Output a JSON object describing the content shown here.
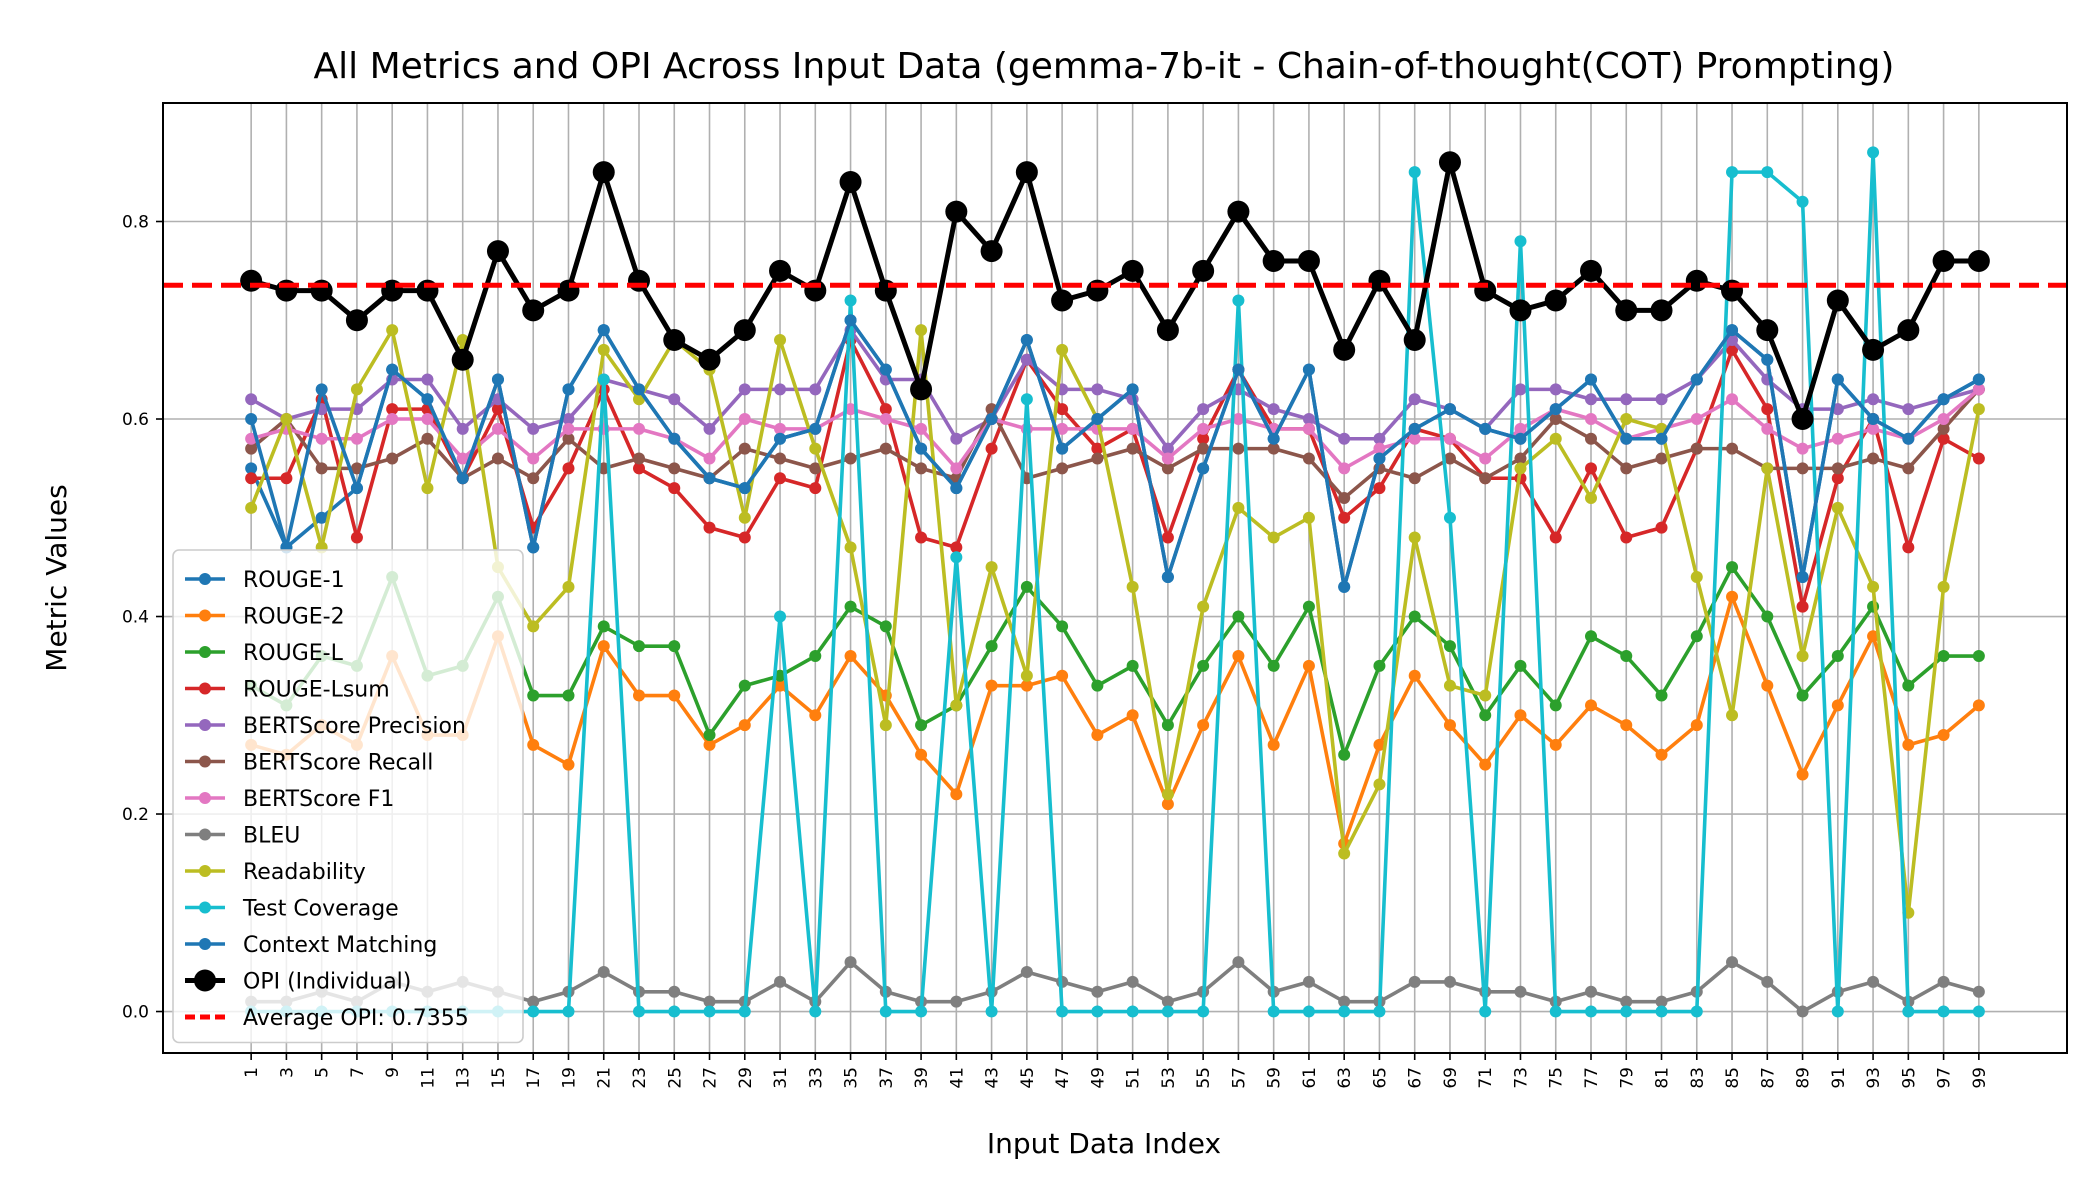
{
  "chart_data": {
    "type": "line",
    "title": "All Metrics and OPI Across Input Data (gemma-7b-it - Chain-of-thought(COT) Prompting)",
    "xlabel": "Input Data Index",
    "ylabel": "Metric Values",
    "xlim": [
      -4,
      104
    ],
    "ylim": [
      -0.042,
      0.92
    ],
    "x": [
      1,
      3,
      5,
      7,
      9,
      11,
      13,
      15,
      17,
      19,
      21,
      23,
      25,
      27,
      29,
      31,
      33,
      35,
      37,
      39,
      41,
      43,
      45,
      47,
      49,
      51,
      53,
      55,
      57,
      59,
      61,
      63,
      65,
      67,
      69,
      71,
      73,
      75,
      77,
      79,
      81,
      83,
      85,
      87,
      89,
      91,
      93,
      95,
      97,
      99
    ],
    "x_tick_labels": [
      "1",
      "3",
      "5",
      "7",
      "9",
      "11",
      "13",
      "15",
      "17",
      "19",
      "21",
      "23",
      "25",
      "27",
      "29",
      "31",
      "33",
      "35",
      "37",
      "39",
      "41",
      "43",
      "45",
      "47",
      "49",
      "51",
      "53",
      "55",
      "57",
      "59",
      "61",
      "63",
      "65",
      "67",
      "69",
      "71",
      "73",
      "75",
      "77",
      "79",
      "81",
      "83",
      "85",
      "87",
      "89",
      "91",
      "93",
      "95",
      "97",
      "99"
    ],
    "y_ticks": [
      0.0,
      0.2,
      0.4,
      0.6,
      0.8
    ],
    "y_tick_labels": [
      "0.0",
      "0.2",
      "0.4",
      "0.6",
      "0.8"
    ],
    "grid": true,
    "legend_position": "lower-left",
    "series": [
      {
        "name": "ROUGE-1",
        "color": "#1f77b4",
        "values": [
          0.55,
          0.47,
          0.5,
          0.53,
          0.65,
          0.62,
          0.54,
          0.64,
          0.47,
          0.63,
          0.69,
          0.63,
          0.58,
          0.54,
          0.53,
          0.58,
          0.59,
          0.7,
          0.65,
          0.57,
          0.53,
          0.6,
          0.68,
          0.57,
          0.6,
          0.63,
          0.44,
          0.55,
          0.65,
          0.58,
          0.65,
          0.43,
          0.56,
          0.59,
          0.61,
          0.59,
          0.58,
          0.61,
          0.64,
          0.58,
          0.58,
          0.64,
          0.69,
          0.66,
          0.44,
          0.64,
          0.6,
          0.58,
          0.62,
          0.64
        ]
      },
      {
        "name": "ROUGE-2",
        "color": "#ff7f0e",
        "values": [
          0.27,
          0.26,
          0.29,
          0.27,
          0.36,
          0.28,
          0.28,
          0.38,
          0.27,
          0.25,
          0.37,
          0.32,
          0.32,
          0.27,
          0.29,
          0.33,
          0.3,
          0.36,
          0.32,
          0.26,
          0.22,
          0.33,
          0.33,
          0.34,
          0.28,
          0.3,
          0.21,
          0.29,
          0.36,
          0.27,
          0.35,
          0.17,
          0.27,
          0.34,
          0.29,
          0.25,
          0.3,
          0.27,
          0.31,
          0.29,
          0.26,
          0.29,
          0.42,
          0.33,
          0.24,
          0.31,
          0.38,
          0.27,
          0.28,
          0.31
        ]
      },
      {
        "name": "ROUGE-L",
        "color": "#2ca02c",
        "values": [
          0.33,
          0.31,
          0.36,
          0.35,
          0.44,
          0.34,
          0.35,
          0.42,
          0.32,
          0.32,
          0.39,
          0.37,
          0.37,
          0.28,
          0.33,
          0.34,
          0.36,
          0.41,
          0.39,
          0.29,
          0.31,
          0.37,
          0.43,
          0.39,
          0.33,
          0.35,
          0.29,
          0.35,
          0.4,
          0.35,
          0.41,
          0.26,
          0.35,
          0.4,
          0.37,
          0.3,
          0.35,
          0.31,
          0.38,
          0.36,
          0.32,
          0.38,
          0.45,
          0.4,
          0.32,
          0.36,
          0.41,
          0.33,
          0.36,
          0.36
        ]
      },
      {
        "name": "ROUGE-Lsum",
        "color": "#d62728",
        "values": [
          0.54,
          0.54,
          0.62,
          0.48,
          0.61,
          0.61,
          0.54,
          0.61,
          0.49,
          0.55,
          0.63,
          0.55,
          0.53,
          0.49,
          0.48,
          0.54,
          0.53,
          0.68,
          0.61,
          0.48,
          0.47,
          0.57,
          0.66,
          0.61,
          0.57,
          0.59,
          0.48,
          0.58,
          0.65,
          0.59,
          0.59,
          0.5,
          0.53,
          0.59,
          0.58,
          0.54,
          0.54,
          0.48,
          0.55,
          0.48,
          0.49,
          0.57,
          0.67,
          0.61,
          0.41,
          0.54,
          0.6,
          0.47,
          0.58,
          0.56
        ]
      },
      {
        "name": "BERTScore Precision",
        "color": "#9467bd",
        "values": [
          0.62,
          0.6,
          0.61,
          0.61,
          0.64,
          0.64,
          0.59,
          0.62,
          0.59,
          0.6,
          0.64,
          0.63,
          0.62,
          0.59,
          0.63,
          0.63,
          0.63,
          0.69,
          0.64,
          0.64,
          0.58,
          0.6,
          0.66,
          0.63,
          0.63,
          0.62,
          0.57,
          0.61,
          0.63,
          0.61,
          0.6,
          0.58,
          0.58,
          0.62,
          0.61,
          0.59,
          0.63,
          0.63,
          0.62,
          0.62,
          0.62,
          0.64,
          0.68,
          0.64,
          0.61,
          0.61,
          0.62,
          0.61,
          0.62,
          0.63
        ]
      },
      {
        "name": "BERTScore Recall",
        "color": "#8c564b",
        "values": [
          0.57,
          0.6,
          0.55,
          0.55,
          0.56,
          0.58,
          0.54,
          0.56,
          0.54,
          0.58,
          0.55,
          0.56,
          0.55,
          0.54,
          0.57,
          0.56,
          0.55,
          0.56,
          0.57,
          0.55,
          0.54,
          0.61,
          0.54,
          0.55,
          0.56,
          0.57,
          0.55,
          0.57,
          0.57,
          0.57,
          0.56,
          0.52,
          0.55,
          0.54,
          0.56,
          0.54,
          0.56,
          0.6,
          0.58,
          0.55,
          0.56,
          0.57,
          0.57,
          0.55,
          0.55,
          0.55,
          0.56,
          0.55,
          0.59,
          0.63
        ]
      },
      {
        "name": "BERTScore F1",
        "color": "#e377c2",
        "values": [
          0.58,
          0.59,
          0.58,
          0.58,
          0.6,
          0.6,
          0.56,
          0.59,
          0.56,
          0.59,
          0.59,
          0.59,
          0.58,
          0.56,
          0.6,
          0.59,
          0.59,
          0.61,
          0.6,
          0.59,
          0.55,
          0.6,
          0.59,
          0.59,
          0.59,
          0.59,
          0.56,
          0.59,
          0.6,
          0.59,
          0.59,
          0.55,
          0.57,
          0.58,
          0.58,
          0.56,
          0.59,
          0.61,
          0.6,
          0.58,
          0.59,
          0.6,
          0.62,
          0.59,
          0.57,
          0.58,
          0.59,
          0.58,
          0.6,
          0.63
        ]
      },
      {
        "name": "BLEU",
        "color": "#7f7f7f",
        "values": [
          0.01,
          0.01,
          0.02,
          0.01,
          0.03,
          0.02,
          0.03,
          0.02,
          0.01,
          0.02,
          0.04,
          0.02,
          0.02,
          0.01,
          0.01,
          0.03,
          0.01,
          0.05,
          0.02,
          0.01,
          0.01,
          0.02,
          0.04,
          0.03,
          0.02,
          0.03,
          0.01,
          0.02,
          0.05,
          0.02,
          0.03,
          0.01,
          0.01,
          0.03,
          0.03,
          0.02,
          0.02,
          0.01,
          0.02,
          0.01,
          0.01,
          0.02,
          0.05,
          0.03,
          0.0,
          0.02,
          0.03,
          0.01,
          0.03,
          0.02
        ]
      },
      {
        "name": "Readability",
        "color": "#bcbd22",
        "values": [
          0.51,
          0.6,
          0.47,
          0.63,
          0.69,
          0.53,
          0.68,
          0.45,
          0.39,
          0.43,
          0.67,
          0.62,
          0.68,
          0.65,
          0.5,
          0.68,
          0.57,
          0.47,
          0.29,
          0.69,
          0.31,
          0.45,
          0.34,
          0.67,
          0.6,
          0.43,
          0.22,
          0.41,
          0.51,
          0.48,
          0.5,
          0.16,
          0.23,
          0.48,
          0.33,
          0.32,
          0.55,
          0.58,
          0.52,
          0.6,
          0.59,
          0.44,
          0.3,
          0.55,
          0.36,
          0.51,
          0.43,
          0.1,
          0.43,
          0.61
        ]
      },
      {
        "name": "Test Coverage",
        "color": "#17becf",
        "values": [
          0.0,
          0.0,
          0.0,
          0.0,
          0.0,
          0.0,
          0.0,
          0.0,
          0.0,
          0.0,
          0.64,
          0.0,
          0.0,
          0.0,
          0.0,
          0.4,
          0.0,
          0.72,
          0.0,
          0.0,
          0.46,
          0.0,
          0.62,
          0.0,
          0.0,
          0.0,
          0.0,
          0.0,
          0.72,
          0.0,
          0.0,
          0.0,
          0.0,
          0.85,
          0.5,
          0.0,
          0.78,
          0.0,
          0.0,
          0.0,
          0.0,
          0.0,
          0.85,
          0.85,
          0.82,
          0.0,
          0.87,
          0.0,
          0.0,
          0.0
        ]
      },
      {
        "name": "Context Matching",
        "color": "#1f77b4",
        "values": [
          0.6,
          0.47,
          0.63,
          0.53,
          0.65,
          0.62,
          0.54,
          0.64,
          0.47,
          0.63,
          0.69,
          0.63,
          0.58,
          0.54,
          0.53,
          0.58,
          0.59,
          0.7,
          0.65,
          0.57,
          0.53,
          0.6,
          0.68,
          0.57,
          0.6,
          0.63,
          0.44,
          0.55,
          0.65,
          0.58,
          0.65,
          0.43,
          0.56,
          0.59,
          0.61,
          0.59,
          0.58,
          0.61,
          0.64,
          0.58,
          0.58,
          0.64,
          0.69,
          0.66,
          0.44,
          0.64,
          0.6,
          0.58,
          0.62,
          0.64
        ]
      },
      {
        "name": "OPI (Individual)",
        "color": "#000000",
        "values": [
          0.74,
          0.73,
          0.73,
          0.7,
          0.73,
          0.73,
          0.66,
          0.77,
          0.71,
          0.73,
          0.85,
          0.74,
          0.68,
          0.66,
          0.69,
          0.75,
          0.73,
          0.84,
          0.73,
          0.63,
          0.81,
          0.77,
          0.85,
          0.72,
          0.73,
          0.75,
          0.69,
          0.75,
          0.81,
          0.76,
          0.76,
          0.67,
          0.74,
          0.68,
          0.86,
          0.73,
          0.71,
          0.72,
          0.75,
          0.71,
          0.71,
          0.74,
          0.73,
          0.69,
          0.6,
          0.72,
          0.67,
          0.69,
          0.76,
          0.76
        ]
      }
    ],
    "average_line": {
      "name": "Average OPI: 0.7355",
      "value": 0.7355,
      "color": "#ff0000"
    }
  }
}
